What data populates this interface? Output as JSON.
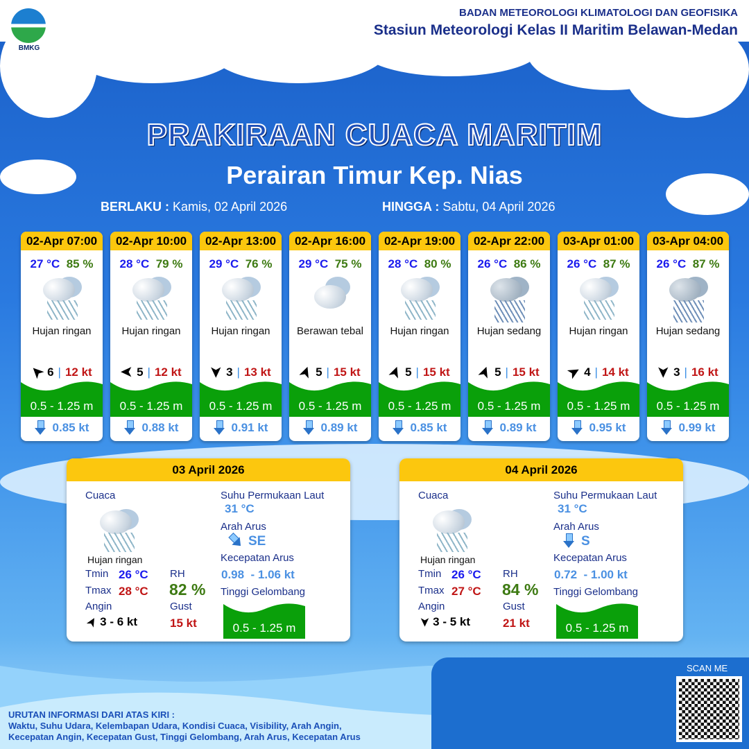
{
  "header": {
    "logo_text": "BMKG",
    "org_line1": "BADAN METEOROLOGI KLIMATOLOGI DAN GEOFISIKA",
    "org_line2": "Stasiun Meteorologi Kelas II Maritim Belawan-Medan"
  },
  "title": "PRAKIRAAN CUACA MARITIM",
  "subtitle": "Perairan Timur Kep. Nias",
  "validity": {
    "from_label": "BERLAKU :",
    "from_value": "Kamis, 02 April 2026",
    "to_label": "HINGGA :",
    "to_value": "Sabtu, 04 April 2026"
  },
  "forecasts": [
    {
      "time": "02-Apr 07:00",
      "temp": "27 °C",
      "rh": "85 %",
      "icon": "light-rain-icon",
      "weather": "Hujan ringan",
      "wind_dir_deg": 315,
      "wind_speed": "6",
      "gust": "12 kt",
      "wave": "0.5 - 1.25 m",
      "current_dir": "S",
      "current_speed": "0.85 kt"
    },
    {
      "time": "02-Apr 10:00",
      "temp": "28 °C",
      "rh": "79 %",
      "icon": "light-rain-icon",
      "weather": "Hujan ringan",
      "wind_dir_deg": 270,
      "wind_speed": "5",
      "gust": "12 kt",
      "wave": "0.5 - 1.25 m",
      "current_dir": "S",
      "current_speed": "0.88 kt"
    },
    {
      "time": "02-Apr 13:00",
      "temp": "29 °C",
      "rh": "76 %",
      "icon": "light-rain-icon",
      "weather": "Hujan ringan",
      "wind_dir_deg": 180,
      "wind_speed": "3",
      "gust": "13 kt",
      "wave": "0.5 - 1.25 m",
      "current_dir": "S",
      "current_speed": "0.91 kt"
    },
    {
      "time": "02-Apr 16:00",
      "temp": "29 °C",
      "rh": "75 %",
      "icon": "overcast-icon",
      "weather": "Berawan tebal",
      "wind_dir_deg": 20,
      "wind_speed": "5",
      "gust": "15 kt",
      "wave": "0.5 - 1.25 m",
      "current_dir": "S",
      "current_speed": "0.89 kt"
    },
    {
      "time": "02-Apr 19:00",
      "temp": "28 °C",
      "rh": "80 %",
      "icon": "light-rain-icon",
      "weather": "Hujan ringan",
      "wind_dir_deg": 20,
      "wind_speed": "5",
      "gust": "15 kt",
      "wave": "0.5 - 1.25 m",
      "current_dir": "S",
      "current_speed": "0.85 kt"
    },
    {
      "time": "02-Apr 22:00",
      "temp": "26 °C",
      "rh": "86 %",
      "icon": "moderate-rain-icon",
      "weather": "Hujan sedang",
      "wind_dir_deg": 20,
      "wind_speed": "5",
      "gust": "15 kt",
      "wave": "0.5 - 1.25 m",
      "current_dir": "S",
      "current_speed": "0.89 kt"
    },
    {
      "time": "03-Apr 01:00",
      "temp": "26 °C",
      "rh": "87 %",
      "icon": "light-rain-icon",
      "weather": "Hujan ringan",
      "wind_dir_deg": 60,
      "wind_speed": "4",
      "gust": "14 kt",
      "wave": "0.5 - 1.25 m",
      "current_dir": "S",
      "current_speed": "0.95 kt"
    },
    {
      "time": "03-Apr 04:00",
      "temp": "26 °C",
      "rh": "87 %",
      "icon": "moderate-rain-icon",
      "weather": "Hujan sedang",
      "wind_dir_deg": 180,
      "wind_speed": "3",
      "gust": "16 kt",
      "wave": "0.5 - 1.25 m",
      "current_dir": "S",
      "current_speed": "0.99 kt"
    }
  ],
  "daily": [
    {
      "date": "03 April 2026",
      "weather_label": "Cuaca",
      "icon": "light-rain-icon",
      "weather": "Hujan ringan",
      "tmin_label": "Tmin",
      "tmin": "26 °C",
      "tmax_label": "Tmax",
      "tmax": "28 °C",
      "rh_label": "RH",
      "rh": "82 %",
      "wind_label": "Angin",
      "wind_dir_deg": 30,
      "wind": "3  - 6 kt",
      "gust_label": "Gust",
      "gust": "15 kt",
      "sst_label": "Suhu Permukaan Laut",
      "sst": "31 °C",
      "current_dir_label": "Arah Arus",
      "current_dir": "SE",
      "current_speed_label": "Kecepatan Arus",
      "current_speed": "0.98  - 1.06 kt",
      "wave_label": "Tinggi Gelombang",
      "wave": "0.5 - 1.25 m"
    },
    {
      "date": "04 April 2026",
      "weather_label": "Cuaca",
      "icon": "light-rain-icon",
      "weather": "Hujan ringan",
      "tmin_label": "Tmin",
      "tmin": "26 °C",
      "tmax_label": "Tmax",
      "tmax": "27 °C",
      "rh_label": "RH",
      "rh": "84 %",
      "wind_label": "Angin",
      "wind_dir_deg": 180,
      "wind": "3  - 5 kt",
      "gust_label": "Gust",
      "gust": "21 kt",
      "sst_label": "Suhu Permukaan Laut",
      "sst": "31 °C",
      "current_dir_label": "Arah Arus",
      "current_dir": "S",
      "current_speed_label": "Kecepatan Arus",
      "current_speed": "0.72  - 1.00 kt",
      "wave_label": "Tinggi Gelombang",
      "wave": "0.5 - 1.25 m"
    }
  ],
  "footer": {
    "heading": "URUTAN INFORMASI DARI ATAS KIRI :",
    "line1": "Waktu, Suhu Udara, Kelembapan Udara, Kondisi Cuaca, Visibility, Arah Angin,",
    "line2": "Kecepatan Angin, Kecepatan Gust, Tinggi Gelombang, Arah Arus, Kecepatan Arus",
    "scan_label": "SCAN ME"
  },
  "colors": {
    "header_yellow": "#fcc70e",
    "wave_green": "#0aa00a",
    "temp_blue": "#1a1aee",
    "rh_green": "#3d7a12",
    "gust_red": "#c01515",
    "current_blue": "#4a90e2"
  }
}
